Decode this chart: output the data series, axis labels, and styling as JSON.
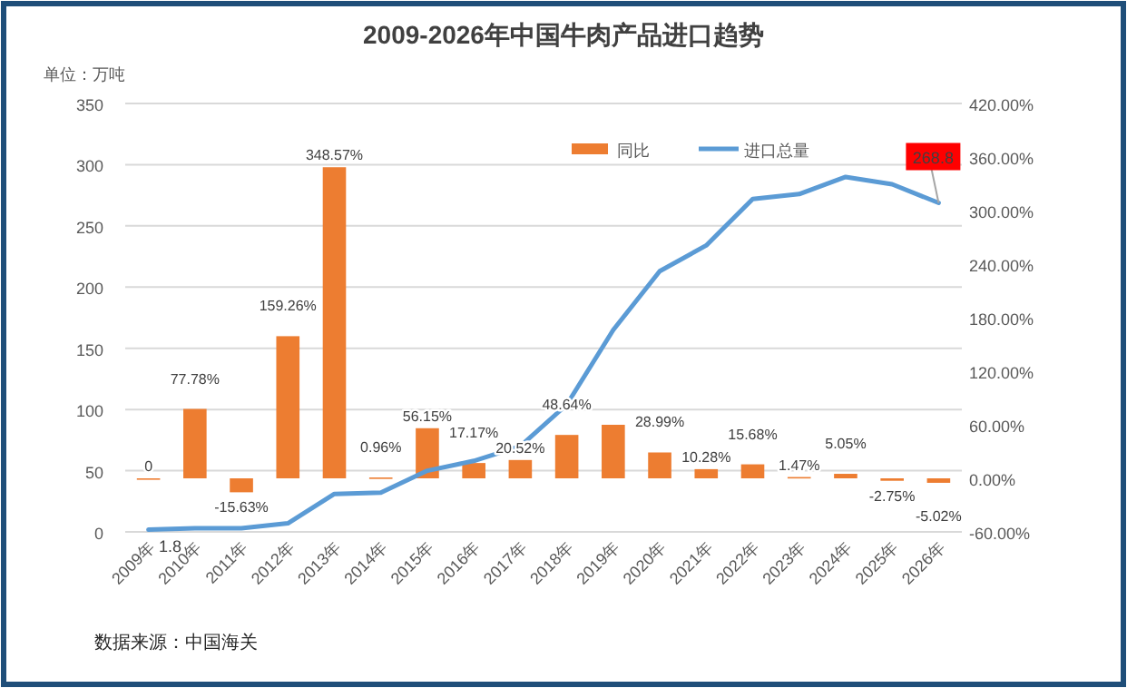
{
  "chart_data": {
    "type": "bar",
    "title": "2009-2026年中国牛肉产品进口趋势",
    "ylabel": "单位：万吨",
    "categories": [
      "2009年",
      "2010年",
      "2011年",
      "2012年",
      "2013年",
      "2014年",
      "2015年",
      "2016年",
      "2017年",
      "2018年",
      "2019年",
      "2020年",
      "2021年",
      "2022年",
      "2023年",
      "2024年",
      "2025年",
      "2026年"
    ],
    "series": [
      {
        "name": "同比",
        "axis": "y2",
        "color": "#ed7d31",
        "values": [
          0,
          77.78,
          -15.63,
          159.26,
          348.57,
          0.96,
          56.15,
          17.17,
          20.52,
          48.64,
          60,
          28.99,
          10.28,
          15.68,
          1.47,
          5.05,
          -2.75,
          -5.02
        ],
        "value_labels": [
          "0",
          "77.78%",
          "-15.63%",
          "159.26%",
          "348.57%",
          "0.96%",
          "56.15%",
          "17.17%",
          "20.52%",
          "48.64%",
          null,
          "28.99%",
          "10.28%",
          "15.68%",
          "1.47%",
          "5.05%",
          "-2.75%",
          "-5.02%"
        ]
      },
      {
        "name": "进口总量",
        "type": "line",
        "color": "#5b9bd5",
        "values": [
          1.8,
          3,
          3,
          7,
          31,
          32,
          50,
          58,
          70,
          104,
          165,
          213,
          234,
          272,
          276,
          290,
          284,
          268.8
        ],
        "value_labels": [
          "1.8",
          null,
          null,
          null,
          null,
          null,
          null,
          null,
          null,
          null,
          null,
          null,
          null,
          null,
          null,
          null,
          null,
          "268.8"
        ]
      }
    ],
    "ylim": [
      0,
      350
    ],
    "yticks": [
      0,
      50,
      100,
      150,
      200,
      250,
      300,
      350
    ],
    "y2lim": [
      -60,
      420
    ],
    "y2ticks": [
      {
        "value": -60,
        "label": "-60.00%"
      },
      {
        "value": 0,
        "label": "0.00%"
      },
      {
        "value": 60,
        "label": "60.00%"
      },
      {
        "value": 120,
        "label": "120.00%"
      },
      {
        "value": 180,
        "label": "180.00%"
      },
      {
        "value": 240,
        "label": "240.00%"
      },
      {
        "value": 300,
        "label": "300.00%"
      },
      {
        "value": 360,
        "label": "360.00%"
      },
      {
        "value": 420,
        "label": "420.00%"
      }
    ],
    "grid": "y",
    "legend": "top right",
    "annotations": [
      "数据来源：中国海关"
    ]
  }
}
